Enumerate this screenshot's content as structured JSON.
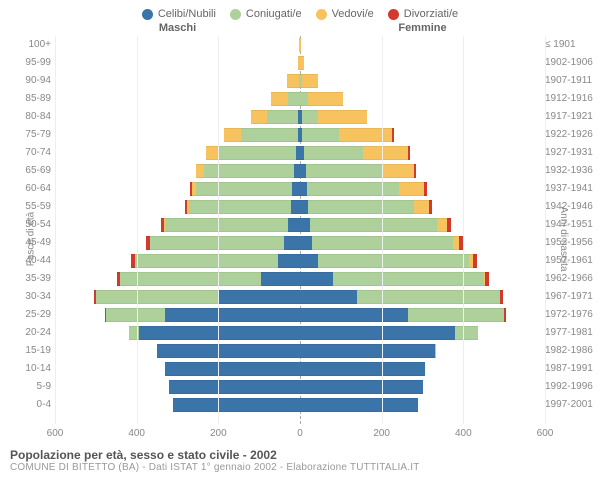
{
  "legend": [
    {
      "label": "Celibi/Nubili",
      "color": "#3b74a8"
    },
    {
      "label": "Coniugati/e",
      "color": "#aed09a"
    },
    {
      "label": "Vedovi/e",
      "color": "#f7c35e"
    },
    {
      "label": "Divorziati/e",
      "color": "#d13a2d"
    }
  ],
  "gender_labels": {
    "male": "Maschi",
    "female": "Femmine"
  },
  "axis": {
    "left_title": "Fasce di età",
    "right_title": "Anni di nascita",
    "x_max": 600,
    "x_ticks": [
      600,
      400,
      200,
      0,
      200,
      400,
      600
    ]
  },
  "colors": {
    "celibi": "#3b74a8",
    "coniugati": "#aed09a",
    "vedovi": "#f7c35e",
    "divorziati": "#d13a2d",
    "grid": "#eeeeee",
    "zero_line": "#aaaaaa",
    "background": "#ffffff"
  },
  "footer": {
    "title": "Popolazione per età, sesso e stato civile - 2002",
    "sub": "COMUNE DI BITETTO (BA) - Dati ISTAT 1° gennaio 2002 - Elaborazione TUTTITALIA.IT"
  },
  "rows": [
    {
      "age": "100+",
      "birth": "≤ 1901",
      "m": [
        0,
        0,
        2,
        0
      ],
      "f": [
        0,
        0,
        3,
        0
      ]
    },
    {
      "age": "95-99",
      "birth": "1902-1906",
      "m": [
        0,
        0,
        5,
        0
      ],
      "f": [
        0,
        0,
        10,
        0
      ]
    },
    {
      "age": "90-94",
      "birth": "1907-1911",
      "m": [
        0,
        3,
        30,
        0
      ],
      "f": [
        0,
        5,
        40,
        0
      ]
    },
    {
      "age": "85-89",
      "birth": "1912-1916",
      "m": [
        0,
        30,
        40,
        0
      ],
      "f": [
        0,
        20,
        85,
        0
      ]
    },
    {
      "age": "80-84",
      "birth": "1917-1921",
      "m": [
        5,
        75,
        40,
        0
      ],
      "f": [
        5,
        40,
        120,
        0
      ]
    },
    {
      "age": "75-79",
      "birth": "1922-1926",
      "m": [
        5,
        140,
        40,
        0
      ],
      "f": [
        5,
        90,
        130,
        5
      ]
    },
    {
      "age": "70-74",
      "birth": "1927-1931",
      "m": [
        10,
        190,
        30,
        0
      ],
      "f": [
        10,
        145,
        110,
        5
      ]
    },
    {
      "age": "65-69",
      "birth": "1932-1936",
      "m": [
        15,
        220,
        20,
        0
      ],
      "f": [
        15,
        185,
        80,
        5
      ]
    },
    {
      "age": "60-64",
      "birth": "1937-1941",
      "m": [
        20,
        235,
        10,
        5
      ],
      "f": [
        18,
        225,
        60,
        8
      ]
    },
    {
      "age": "55-59",
      "birth": "1942-1946",
      "m": [
        22,
        250,
        5,
        5
      ],
      "f": [
        20,
        260,
        35,
        8
      ]
    },
    {
      "age": "50-54",
      "birth": "1947-1951",
      "m": [
        30,
        300,
        3,
        8
      ],
      "f": [
        25,
        310,
        25,
        10
      ]
    },
    {
      "age": "45-49",
      "birth": "1952-1956",
      "m": [
        38,
        330,
        0,
        10
      ],
      "f": [
        30,
        345,
        15,
        10
      ]
    },
    {
      "age": "40-44",
      "birth": "1957-1961",
      "m": [
        55,
        350,
        0,
        8
      ],
      "f": [
        45,
        370,
        8,
        10
      ]
    },
    {
      "age": "35-39",
      "birth": "1962-1966",
      "m": [
        95,
        345,
        0,
        8
      ],
      "f": [
        80,
        370,
        4,
        10
      ]
    },
    {
      "age": "30-34",
      "birth": "1967-1971",
      "m": [
        200,
        300,
        0,
        5
      ],
      "f": [
        140,
        350,
        0,
        8
      ]
    },
    {
      "age": "25-29",
      "birth": "1972-1976",
      "m": [
        330,
        145,
        0,
        2
      ],
      "f": [
        265,
        235,
        0,
        4
      ]
    },
    {
      "age": "20-24",
      "birth": "1977-1981",
      "m": [
        395,
        25,
        0,
        0
      ],
      "f": [
        380,
        55,
        0,
        0
      ]
    },
    {
      "age": "15-19",
      "birth": "1982-1986",
      "m": [
        350,
        0,
        0,
        0
      ],
      "f": [
        330,
        2,
        0,
        0
      ]
    },
    {
      "age": "10-14",
      "birth": "1987-1991",
      "m": [
        330,
        0,
        0,
        0
      ],
      "f": [
        305,
        0,
        0,
        0
      ]
    },
    {
      "age": "5-9",
      "birth": "1992-1996",
      "m": [
        320,
        0,
        0,
        0
      ],
      "f": [
        300,
        0,
        0,
        0
      ]
    },
    {
      "age": "0-4",
      "birth": "1997-2001",
      "m": [
        310,
        0,
        0,
        0
      ],
      "f": [
        290,
        0,
        0,
        0
      ]
    }
  ]
}
